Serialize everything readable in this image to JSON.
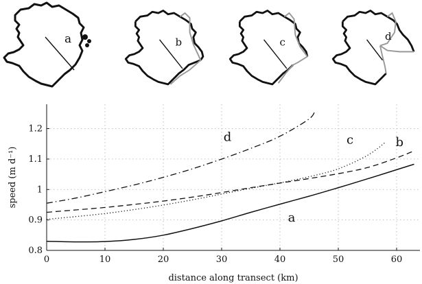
{
  "chart_data": {
    "type": "line",
    "xlabel": "distance along transect (km)",
    "ylabel": "speed (m d⁻¹)",
    "xlim": [
      0,
      64
    ],
    "ylim": [
      0.8,
      1.28
    ],
    "xticks": [
      0,
      10,
      20,
      30,
      40,
      50,
      60
    ],
    "yticks": [
      0.8,
      0.9,
      1,
      1.1,
      1.2
    ],
    "ytick_labels": [
      "0.8",
      "0.9",
      "1",
      "1.1",
      "1.2"
    ],
    "grid": true,
    "series": [
      {
        "name": "a",
        "style": "solid",
        "x": [
          0,
          5,
          10,
          15,
          20,
          25,
          30,
          35,
          40,
          45,
          50,
          55,
          60,
          63
        ],
        "values": [
          0.83,
          0.828,
          0.829,
          0.836,
          0.85,
          0.872,
          0.897,
          0.925,
          0.952,
          0.978,
          1.006,
          1.035,
          1.065,
          1.083
        ]
      },
      {
        "name": "b",
        "style": "dashed",
        "x": [
          0,
          5,
          10,
          15,
          20,
          25,
          30,
          35,
          40,
          45,
          50,
          55,
          60,
          63
        ],
        "values": [
          0.925,
          0.933,
          0.941,
          0.951,
          0.962,
          0.975,
          0.99,
          1.006,
          1.021,
          1.036,
          1.052,
          1.072,
          1.104,
          1.127
        ]
      },
      {
        "name": "c",
        "style": "dotted",
        "x": [
          0,
          5,
          10,
          15,
          20,
          25,
          30,
          35,
          40,
          45,
          50,
          55,
          58
        ],
        "values": [
          0.902,
          0.911,
          0.921,
          0.934,
          0.949,
          0.966,
          0.985,
          1.004,
          1.022,
          1.042,
          1.068,
          1.112,
          1.154
        ]
      },
      {
        "name": "d",
        "style": "dashdot",
        "x": [
          0,
          5,
          10,
          15,
          20,
          25,
          30,
          35,
          40,
          45,
          46
        ],
        "values": [
          0.955,
          0.972,
          0.993,
          1.015,
          1.04,
          1.068,
          1.1,
          1.135,
          1.175,
          1.232,
          1.26
        ]
      }
    ]
  },
  "maps": [
    {
      "label": "a"
    },
    {
      "label": "b"
    },
    {
      "label": "c"
    },
    {
      "label": "d"
    }
  ],
  "colors": {
    "outline": "#111111",
    "ocean_boundary": "#999999",
    "grid": "#b0b0b0"
  }
}
